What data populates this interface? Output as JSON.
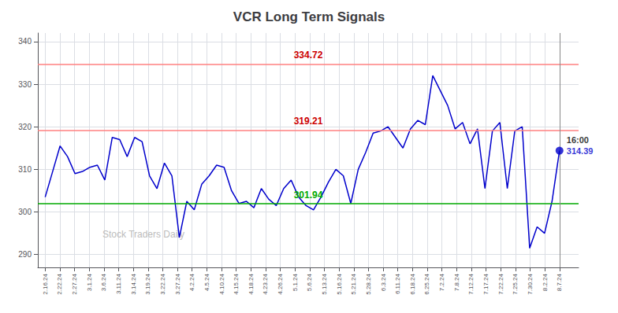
{
  "chart_data": {
    "type": "line",
    "title": "VCR Long Term Signals",
    "color": "#0000cc",
    "x": [
      0,
      0.507246,
      1.014493,
      1.521739,
      2.028986,
      2.536232,
      3.043478,
      3.550725,
      4.057971,
      4.565217,
      5.072464,
      5.57971,
      6.086957,
      6.594203,
      7.101449,
      7.608696,
      8.115942,
      8.623188,
      9.130435,
      9.637681,
      10.144928,
      10.652174,
      11.15942,
      11.666667,
      12.173913,
      12.681159,
      13.188406,
      13.695652,
      14.202899,
      14.710145,
      15.217391,
      15.724638,
      16.231884,
      16.73913,
      17.246377,
      17.753623,
      18.26087,
      18.768116,
      19.275362,
      19.782609,
      20.289855,
      20.797101,
      21.304348,
      21.811594,
      22.318841,
      22.826087,
      23.333333,
      23.84058,
      24.347826,
      24.855072,
      25.362319,
      25.869565,
      26.376812,
      26.884058,
      27.391304,
      27.898551,
      28.405797,
      28.913043,
      29.42029,
      29.927536,
      30.434783,
      30.942029,
      31.449275,
      31.956522,
      32.463768,
      32.971014,
      33.478261,
      33.985507,
      34.492754,
      35
    ],
    "values": [
      303.5,
      309.5,
      315.5,
      313.0,
      309.0,
      309.5,
      310.5,
      311.0,
      307.5,
      317.5,
      317.0,
      313.0,
      317.5,
      316.5,
      308.5,
      305.5,
      311.5,
      308.5,
      294.0,
      302.5,
      300.5,
      306.5,
      308.5,
      311.0,
      310.5,
      305.0,
      302.0,
      302.5,
      301.0,
      305.5,
      303.0,
      301.5,
      305.5,
      307.5,
      303.5,
      301.5,
      300.5,
      303.5,
      307.0,
      310.0,
      308.5,
      302.0,
      310.0,
      314.0,
      318.5,
      319.0,
      320.0,
      317.5,
      315.0,
      319.5,
      321.5,
      320.5,
      332.0,
      328.5,
      325.0,
      319.5,
      321.0,
      316.0,
      319.5,
      305.5,
      319.0,
      321.0,
      305.5,
      319.0,
      320.0,
      291.5,
      296.5,
      295.0,
      302.5,
      314.39
    ],
    "xlim": [
      -0.5,
      36.3
    ],
    "xticks": [
      {
        "value": 0,
        "label": "2.16.24"
      },
      {
        "value": 1,
        "label": "2.22.24"
      },
      {
        "value": 2,
        "label": "2.27.24"
      },
      {
        "value": 3,
        "label": "3.1.24"
      },
      {
        "value": 4,
        "label": "3.6.24"
      },
      {
        "value": 5,
        "label": "3.11.24"
      },
      {
        "value": 6,
        "label": "3.14.24"
      },
      {
        "value": 7,
        "label": "3.19.24"
      },
      {
        "value": 8,
        "label": "3.22.24"
      },
      {
        "value": 9,
        "label": "3.27.24"
      },
      {
        "value": 10,
        "label": "4.2.24"
      },
      {
        "value": 11,
        "label": "4.5.24"
      },
      {
        "value": 12,
        "label": "4.10.24"
      },
      {
        "value": 13,
        "label": "4.15.24"
      },
      {
        "value": 14,
        "label": "4.18.24"
      },
      {
        "value": 15,
        "label": "4.23.24"
      },
      {
        "value": 16,
        "label": "4.26.24"
      },
      {
        "value": 17,
        "label": "5.1.24"
      },
      {
        "value": 18,
        "label": "5.6.24"
      },
      {
        "value": 19,
        "label": "5.13.24"
      },
      {
        "value": 20,
        "label": "5.16.24"
      },
      {
        "value": 21,
        "label": "5.21.24"
      },
      {
        "value": 22,
        "label": "5.28.24"
      },
      {
        "value": 23,
        "label": "6.3.24"
      },
      {
        "value": 24,
        "label": "6.11.24"
      },
      {
        "value": 25,
        "label": "6.18.24"
      },
      {
        "value": 26,
        "label": "6.25.24"
      },
      {
        "value": 27,
        "label": "7.2.24"
      },
      {
        "value": 28,
        "label": "7.8.24"
      },
      {
        "value": 29,
        "label": "7.12.24"
      },
      {
        "value": 30,
        "label": "7.17.24"
      },
      {
        "value": 31,
        "label": "7.22.24"
      },
      {
        "value": 32,
        "label": "7.25.24"
      },
      {
        "value": 33,
        "label": "7.30.24"
      },
      {
        "value": 34,
        "label": "8.2.24"
      },
      {
        "value": 35,
        "label": "8.7.24"
      }
    ],
    "ylim": [
      287,
      342
    ],
    "yticks": [
      290,
      300,
      310,
      320,
      330,
      340
    ],
    "grid": true,
    "hlines": [
      {
        "value": 334.72,
        "label": "334.72",
        "color": "#ff8080",
        "label_color": "#cc0000"
      },
      {
        "value": 319.21,
        "label": "319.21",
        "color": "#ff8080",
        "label_color": "#cc0000"
      },
      {
        "value": 301.94,
        "label": "301.94",
        "color": "#00aa00",
        "label_color": "#00aa00"
      }
    ],
    "last_point": {
      "time": "16:00",
      "price": "314.39",
      "value": 314.39,
      "line_color": "#888888"
    },
    "watermark": {
      "text": "Stock Traders Daily",
      "color": "#bbbbbb"
    }
  }
}
